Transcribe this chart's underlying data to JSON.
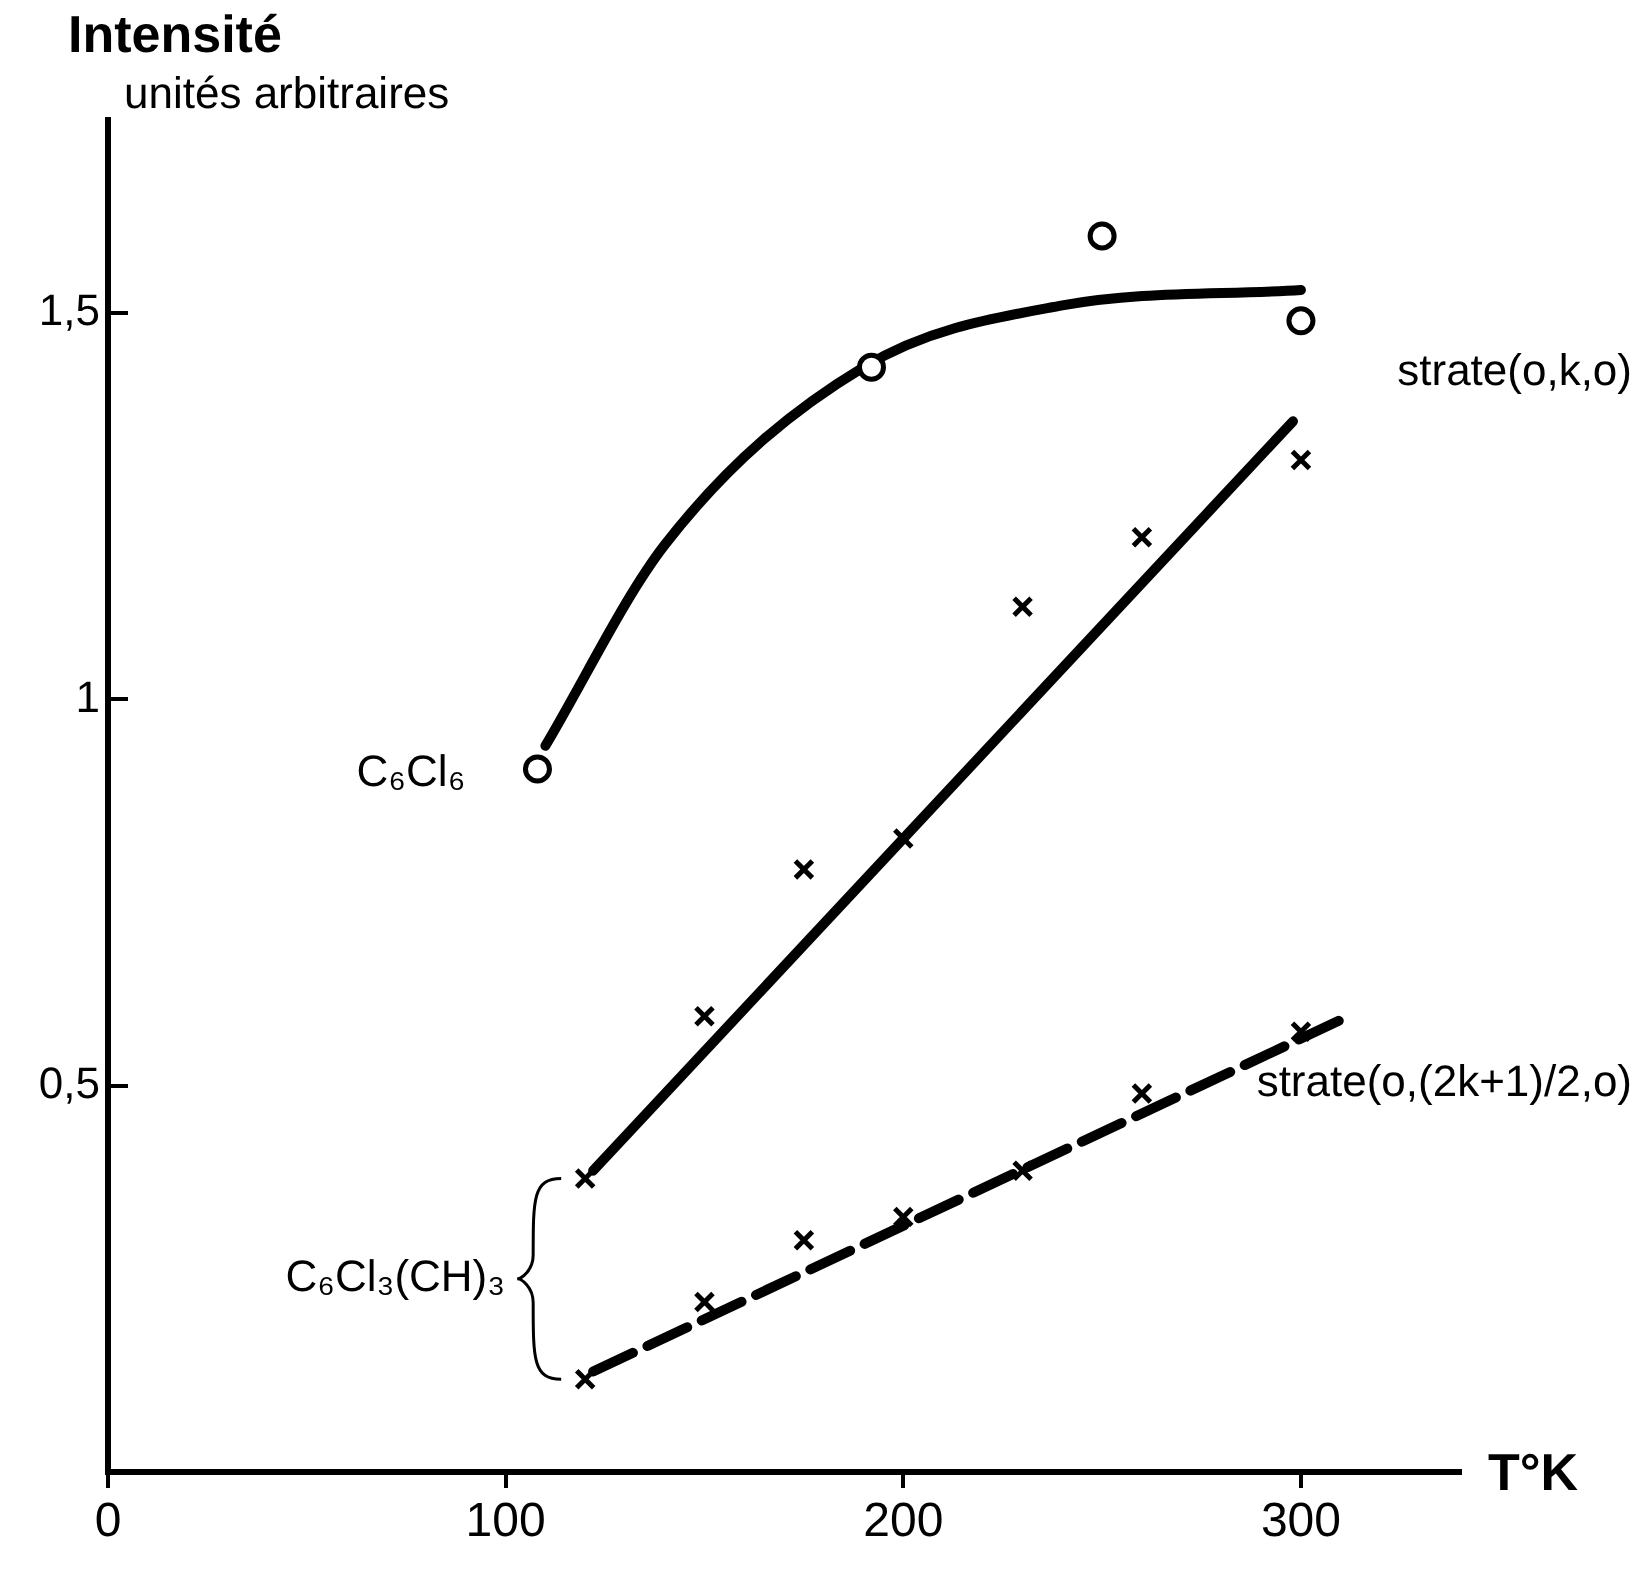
{
  "chart_data": {
    "type": "scatter",
    "ylabel": "Intensité",
    "xlabel": "T°K",
    "annotations": [
      "unités arbitraires",
      "C₆Cl₃(CH)₃"
    ],
    "xlim": [
      0,
      340
    ],
    "ylim": [
      0,
      1.75
    ],
    "xticks": [
      0,
      100,
      200,
      300
    ],
    "yticks": [
      {
        "value": 0.5,
        "label": "0,5"
      },
      {
        "value": 1,
        "label": "1"
      },
      {
        "value": 1.5,
        "label": "1,5"
      }
    ],
    "grid": false,
    "legend": false,
    "series": [
      {
        "marker": "circle",
        "color": "#000000",
        "x": [
          108,
          192,
          250,
          300
        ],
        "values": [
          0.91,
          1.43,
          1.6,
          1.49
        ]
      },
      {
        "type": "line",
        "name": "C₆Cl₆",
        "color": "#000000",
        "marker": "none",
        "line_style": "solid",
        "x": [
          110,
          140,
          190,
          240,
          300
        ],
        "values": [
          0.94,
          1.2,
          1.43,
          1.51,
          1.53
        ]
      },
      {
        "marker": "cross",
        "color": "#000000",
        "x": [
          120,
          150,
          175,
          200,
          230,
          260,
          300
        ],
        "values": [
          0.38,
          0.59,
          0.78,
          0.82,
          1.12,
          1.21,
          1.31
        ]
      },
      {
        "type": "line",
        "name": "strate(o,k,o)",
        "color": "#000000",
        "marker": "none",
        "line_style": "solid",
        "x": [
          122,
          298
        ],
        "values": [
          0.39,
          1.36
        ]
      },
      {
        "marker": "cross",
        "color": "#000000",
        "x": [
          120,
          150,
          175,
          200,
          230,
          260,
          300
        ],
        "values": [
          0.12,
          0.22,
          0.3,
          0.33,
          0.39,
          0.49,
          0.57
        ]
      },
      {
        "type": "line",
        "name": "strate(o,(2k+1)/2,o)",
        "color": "#000000",
        "marker": "none",
        "line_style": "dashed",
        "x": [
          122,
          312
        ],
        "values": [
          0.13,
          0.59
        ]
      }
    ]
  }
}
